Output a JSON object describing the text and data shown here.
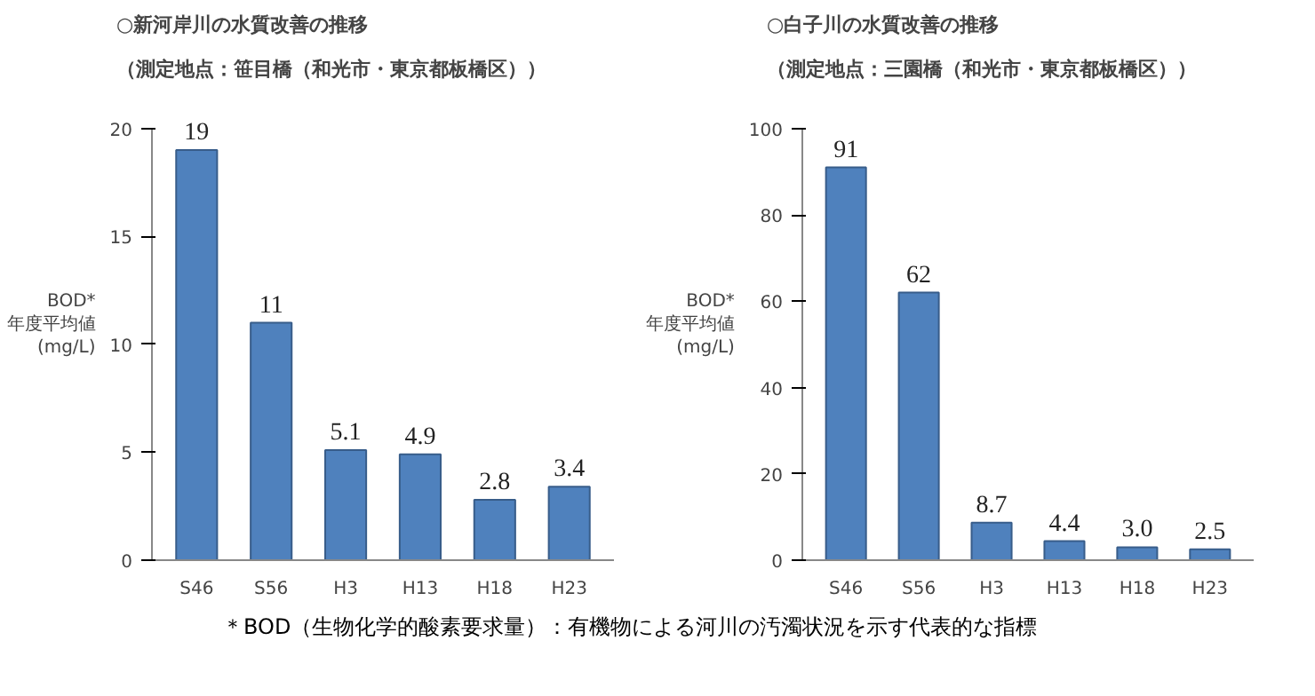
{
  "chart_data": [
    {
      "type": "bar",
      "title": "○新河岸川の水質改善の推移",
      "subtitle": "（測定地点：笹目橋（和光市・東京都板橋区））",
      "ylabel": "BOD*\n年度平均値\n(mg/L)",
      "categories": [
        "S46",
        "S56",
        "H3",
        "H13",
        "H18",
        "H23"
      ],
      "values": [
        19,
        11,
        5.1,
        4.9,
        2.8,
        3.4
      ],
      "value_labels": [
        "19",
        "11",
        "5.1",
        "4.9",
        "2.8",
        "3.4"
      ],
      "color": "#4f81bd",
      "ylim": [
        0,
        20
      ],
      "yticks": [
        0,
        5,
        10,
        15,
        20
      ],
      "grid": false,
      "annotations": [
        "＊BOD（生物化学的酸素要求量）：有機物による河川の汚濁状況を示す代表的な指標"
      ]
    },
    {
      "type": "bar",
      "title": "○白子川の水質改善の推移",
      "subtitle": "（測定地点：三園橋（和光市・東京都板橋区））",
      "ylabel": "BOD*\n年度平均値\n(mg/L)",
      "categories": [
        "S46",
        "S56",
        "H3",
        "H13",
        "H18",
        "H23"
      ],
      "values": [
        91,
        62,
        8.7,
        4.4,
        3.0,
        2.5
      ],
      "value_labels": [
        "91",
        "62",
        "8.7",
        "4.4",
        "3.0",
        "2.5"
      ],
      "color": "#4f81bd",
      "ylim": [
        0,
        100
      ],
      "yticks": [
        0,
        20,
        40,
        60,
        80,
        100
      ],
      "grid": false
    }
  ]
}
